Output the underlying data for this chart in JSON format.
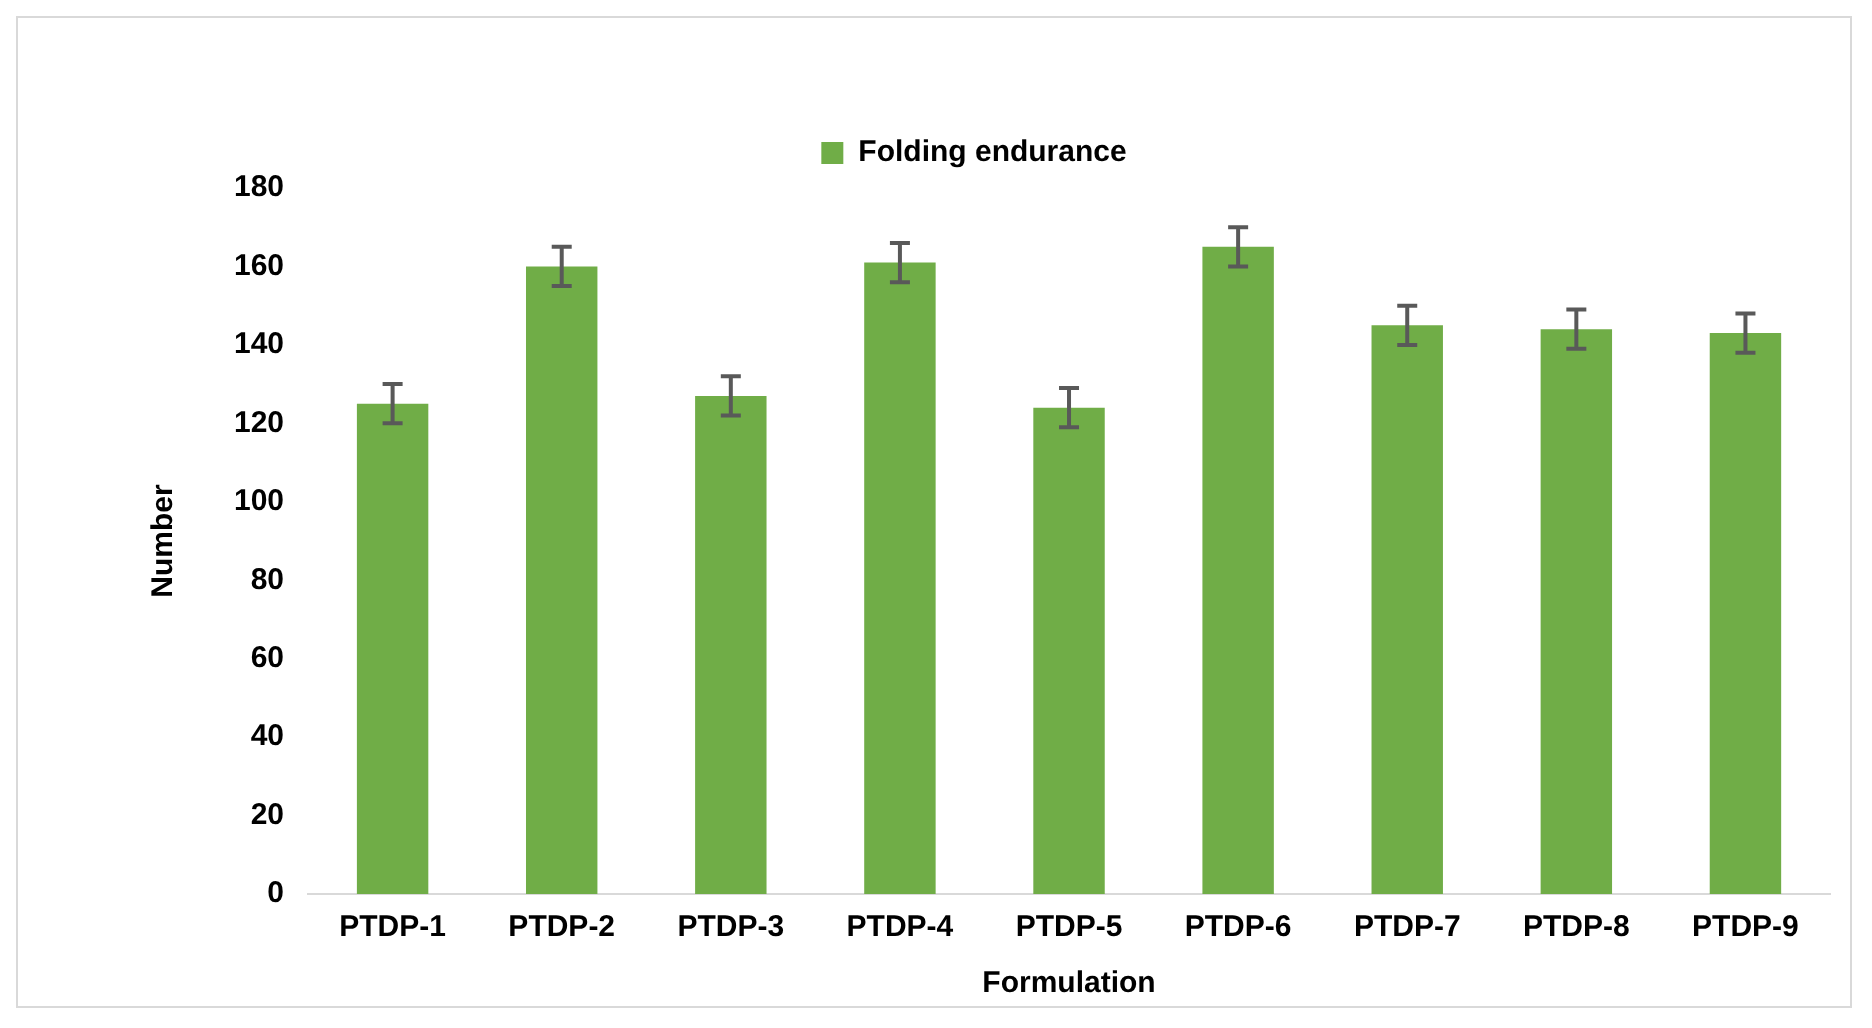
{
  "chart_data": {
    "type": "bar",
    "xlabel": "Formulation",
    "ylabel": "Number",
    "categories": [
      "PTDP-1",
      "PTDP-2",
      "PTDP-3",
      "PTDP-4",
      "PTDP-5",
      "PTDP-6",
      "PTDP-7",
      "PTDP-8",
      "PTDP-9"
    ],
    "series": [
      {
        "name": "Folding endurance",
        "color": "#70ad47",
        "values": [
          125,
          160,
          127,
          161,
          124,
          165,
          145,
          144,
          143
        ],
        "errors": [
          5,
          5,
          5,
          5,
          5,
          5,
          5,
          5,
          5
        ]
      }
    ],
    "ylim": [
      0,
      180
    ],
    "yticks": [
      0,
      20,
      40,
      60,
      80,
      100,
      120,
      140,
      160,
      180
    ],
    "grid": false,
    "legend": "top"
  }
}
